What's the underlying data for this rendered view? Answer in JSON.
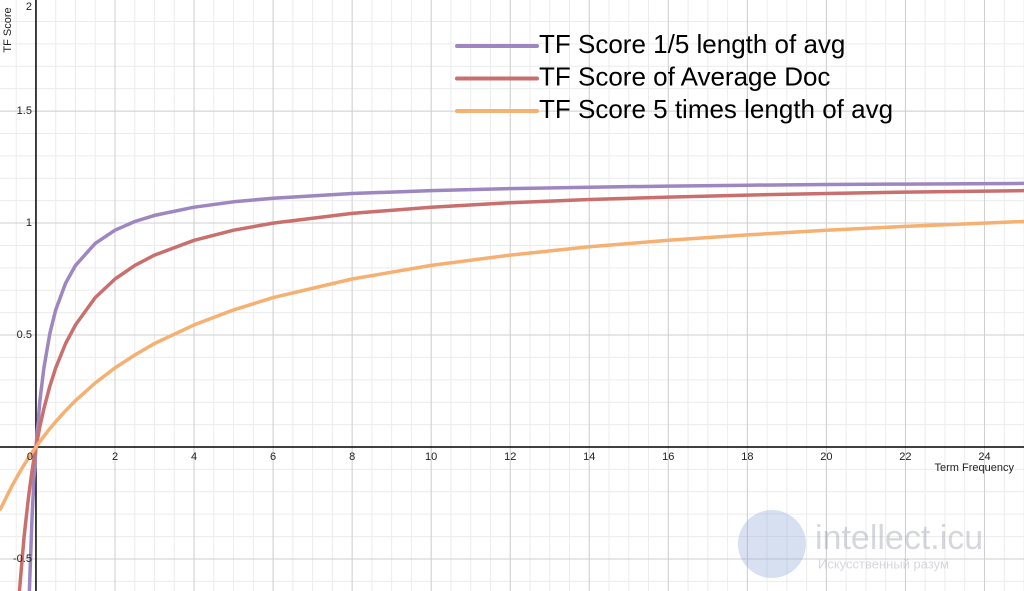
{
  "chart_data": {
    "type": "line",
    "x_label": "Term Frequency",
    "y_label": "TF Score",
    "x": [
      -0.9,
      -0.6,
      -0.417,
      -0.3,
      -0.2,
      -0.167,
      -0.1,
      -0.05,
      0,
      0.1,
      0.2,
      0.35,
      0.5,
      0.75,
      1,
      1.5,
      2,
      2.5,
      3,
      4,
      5,
      6,
      8,
      10,
      12,
      14,
      16,
      18,
      20,
      22,
      25
    ],
    "series": [
      {
        "name": "TF Score 1/5 length of avg",
        "color": "#9e86c0",
        "values": [
          null,
          null,
          null,
          null,
          null,
          -0.64,
          -0.316,
          -0.14,
          0,
          0.207,
          0.353,
          0.506,
          0.612,
          0.732,
          0.811,
          0.909,
          0.968,
          1.007,
          1.034,
          1.071,
          1.095,
          1.111,
          1.132,
          1.145,
          1.154,
          1.16,
          1.165,
          1.169,
          1.172,
          1.174,
          1.177
        ]
      },
      {
        "name": "TF Score of Average Doc",
        "color": "#c9706e",
        "values": [
          null,
          null,
          -0.64,
          -0.4,
          -0.24,
          -0.194,
          -0.109,
          -0.052,
          0,
          0.092,
          0.171,
          0.271,
          0.353,
          0.462,
          0.545,
          0.667,
          0.75,
          0.811,
          0.857,
          0.923,
          0.968,
          1,
          1.043,
          1.071,
          1.091,
          1.105,
          1.116,
          1.125,
          1.132,
          1.138,
          1.145
        ]
      },
      {
        "name": "TF Score 5 times length of avg",
        "color": "#f5b072",
        "values": [
          -0.277,
          -0.171,
          -0.114,
          -0.08,
          -0.052,
          -0.043,
          -0.026,
          -0.013,
          0,
          0.024,
          0.048,
          0.082,
          0.113,
          0.162,
          0.207,
          0.286,
          0.353,
          0.411,
          0.462,
          0.545,
          0.612,
          0.667,
          0.75,
          0.811,
          0.857,
          0.894,
          0.923,
          0.947,
          0.968,
          0.985,
          1.007
        ]
      }
    ],
    "xlim": [
      -0.91,
      25
    ],
    "ylim": [
      -0.643,
      1.996
    ],
    "xticks": [
      0,
      2,
      4,
      6,
      8,
      10,
      12,
      14,
      16,
      18,
      20,
      22,
      24
    ],
    "yticks": [
      -0.5,
      0.5,
      1,
      1.5,
      2
    ],
    "grid": true,
    "minor_grid": true,
    "legend": "top-right"
  },
  "watermark": {
    "title": "intellect.icu",
    "subtitle": "Искусственный разум"
  }
}
